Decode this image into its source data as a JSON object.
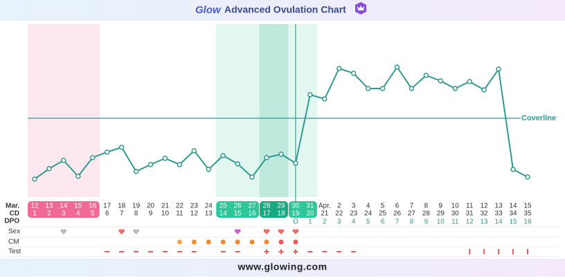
{
  "header": {
    "logo": "Glow",
    "title": "Advanced Ovulation Chart"
  },
  "chart_data": {
    "type": "line",
    "color": "#2f9a90",
    "x": [
      "12",
      "13",
      "14",
      "15",
      "16",
      "17",
      "18",
      "19",
      "20",
      "21",
      "22",
      "23",
      "24",
      "25",
      "26",
      "27",
      "28",
      "29",
      "30",
      "31",
      "Apr.",
      "2",
      "3",
      "4",
      "5",
      "6",
      "7",
      "8",
      "9",
      "10",
      "11",
      "12",
      "13",
      "14",
      "15"
    ],
    "values": [
      10.4,
      16.4,
      21.2,
      12,
      22.8,
      26,
      28.8,
      14.8,
      18.8,
      22.4,
      18.8,
      26.8,
      16,
      24,
      19.2,
      11.6,
      22.8,
      24.8,
      19.6,
      59.2,
      56.8,
      74.4,
      71.6,
      62.8,
      62.8,
      75.2,
      62.8,
      70.4,
      67.2,
      62.8,
      66.8,
      62,
      74,
      16,
      11.6
    ],
    "ylim": [
      0,
      100
    ],
    "coverline": {
      "label": "Coverline",
      "value": 45.6
    },
    "row_labels": {
      "month": "Mar.",
      "cd": "CD",
      "dpo": "DPO",
      "sex": "Sex",
      "cm": "CM",
      "test": "Test"
    },
    "cd": [
      1,
      2,
      3,
      4,
      5,
      6,
      7,
      8,
      9,
      10,
      11,
      12,
      13,
      14,
      15,
      16,
      17,
      18,
      19,
      20,
      21,
      22,
      23,
      24,
      25,
      26,
      27,
      28,
      29,
      30,
      31,
      32,
      33,
      34,
      35
    ],
    "dpo": [
      null,
      null,
      null,
      null,
      null,
      null,
      null,
      null,
      null,
      null,
      null,
      null,
      null,
      null,
      null,
      null,
      null,
      null,
      "O",
      1,
      2,
      3,
      4,
      5,
      6,
      7,
      8,
      9,
      10,
      11,
      12,
      13,
      14,
      15,
      16
    ]
  },
  "footer": "www.glowing.com"
}
